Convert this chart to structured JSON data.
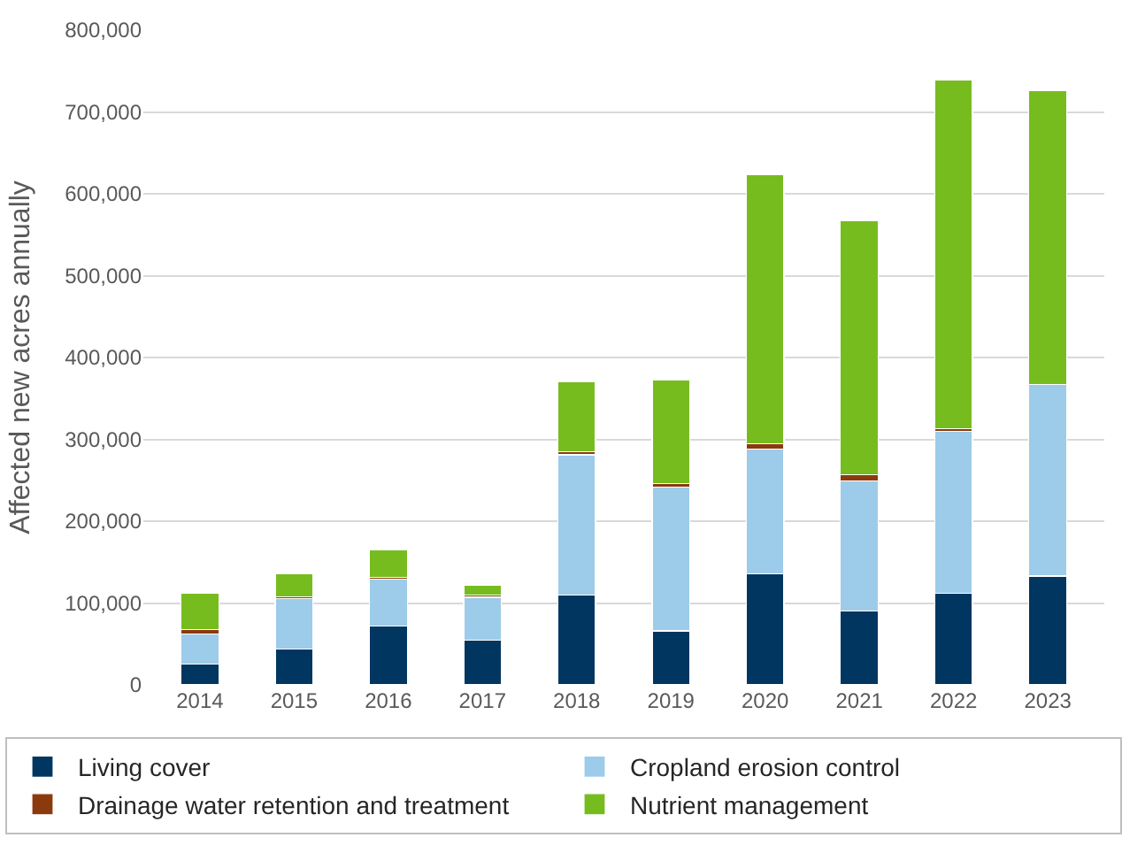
{
  "chart_data": {
    "type": "bar",
    "stacked": true,
    "ylabel": "Affected new acres annually",
    "categories": [
      "2014",
      "2015",
      "2016",
      "2017",
      "2018",
      "2019",
      "2020",
      "2021",
      "2022",
      "2023"
    ],
    "series": [
      {
        "name": "Living cover",
        "color": "#003660",
        "values": [
          25000,
          44000,
          72000,
          55000,
          110000,
          66000,
          136000,
          90000,
          112000,
          133000
        ]
      },
      {
        "name": "Cropland erosion control",
        "color": "#9dcbea",
        "values": [
          37000,
          61000,
          57000,
          52000,
          171000,
          176000,
          152000,
          159000,
          198000,
          234000
        ]
      },
      {
        "name": "Drainage water retention and treatment",
        "color": "#8b3a0e",
        "values": [
          6000,
          3000,
          2000,
          3000,
          4000,
          4000,
          7000,
          8000,
          3000,
          0
        ]
      },
      {
        "name": "Nutrient management",
        "color": "#77bc1f",
        "values": [
          44000,
          28000,
          34000,
          12000,
          85000,
          127000,
          328000,
          310000,
          426000,
          359000
        ]
      }
    ],
    "ylim": [
      0,
      800000
    ],
    "yticks": [
      {
        "value": 0,
        "label": "0"
      },
      {
        "value": 100000,
        "label": "100,000"
      },
      {
        "value": 200000,
        "label": "200,000"
      },
      {
        "value": 300000,
        "label": "300,000"
      },
      {
        "value": 400000,
        "label": "400,000"
      },
      {
        "value": 500000,
        "label": "500,000"
      },
      {
        "value": 600000,
        "label": "600,000"
      },
      {
        "value": 700000,
        "label": "700,000"
      },
      {
        "value": 800000,
        "label": "800,000"
      }
    ],
    "grid": "y",
    "legend": "bottom"
  }
}
